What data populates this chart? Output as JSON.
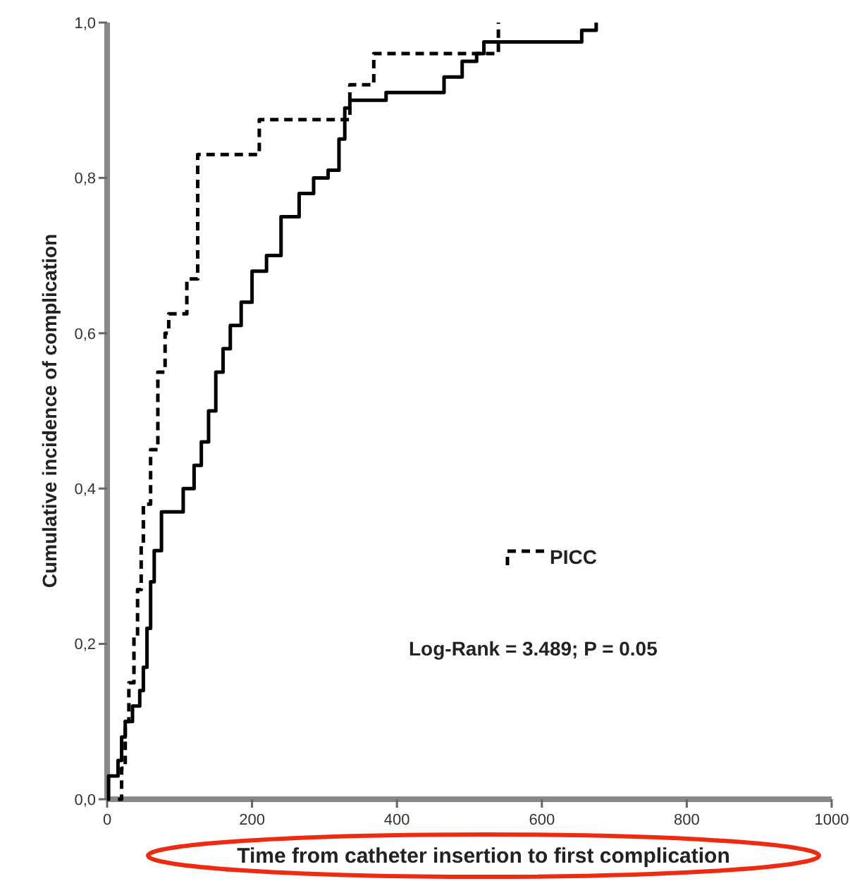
{
  "chart_data": {
    "type": "step",
    "xlabel": "Time from catheter insertion to first complication",
    "ylabel": "Cumulative incidence of complication",
    "xlim": [
      0,
      1000
    ],
    "xticks": [
      0,
      200,
      400,
      600,
      800,
      1000
    ],
    "ylim": [
      0,
      1
    ],
    "yticks": [
      {
        "value": 0,
        "label": "0,0"
      },
      {
        "value": 0.2,
        "label": "0,2"
      },
      {
        "value": 0.4,
        "label": "0,4"
      },
      {
        "value": 0.6,
        "label": "0,6"
      },
      {
        "value": 0.8,
        "label": "0,8"
      },
      {
        "value": 1,
        "label": "1,0"
      }
    ],
    "grid": false,
    "legend": "right",
    "marker": "none",
    "series": [
      {
        "color": "#000000",
        "line_style": "solid",
        "x": [
          0,
          2,
          15,
          20,
          25,
          35,
          45,
          50,
          55,
          60,
          65,
          75,
          105,
          120,
          130,
          140,
          150,
          160,
          170,
          185,
          200,
          220,
          240,
          265,
          285,
          305,
          320,
          328,
          335,
          385,
          465,
          490,
          510,
          520,
          655,
          675
        ],
        "values": [
          0,
          0.03,
          0.05,
          0.08,
          0.1,
          0.12,
          0.14,
          0.17,
          0.22,
          0.28,
          0.32,
          0.37,
          0.4,
          0.43,
          0.46,
          0.5,
          0.55,
          0.58,
          0.61,
          0.64,
          0.68,
          0.7,
          0.75,
          0.78,
          0.8,
          0.81,
          0.85,
          0.89,
          0.9,
          0.91,
          0.93,
          0.95,
          0.96,
          0.975,
          0.99,
          1
        ]
      },
      {
        "name": "PICC",
        "color": "#000000",
        "line_style": "dashed",
        "x": [
          15,
          20,
          25,
          30,
          37,
          42,
          47,
          50,
          60,
          70,
          80,
          85,
          110,
          125,
          210,
          335,
          368,
          540
        ],
        "values": [
          0,
          0.04,
          0.1,
          0.15,
          0.21,
          0.27,
          0.33,
          0.38,
          0.45,
          0.55,
          0.6,
          0.625,
          0.67,
          0.83,
          0.875,
          0.92,
          0.96,
          1
        ]
      }
    ],
    "annotations": [
      "Log-Rank = 3.489; P = 0.05"
    ]
  }
}
